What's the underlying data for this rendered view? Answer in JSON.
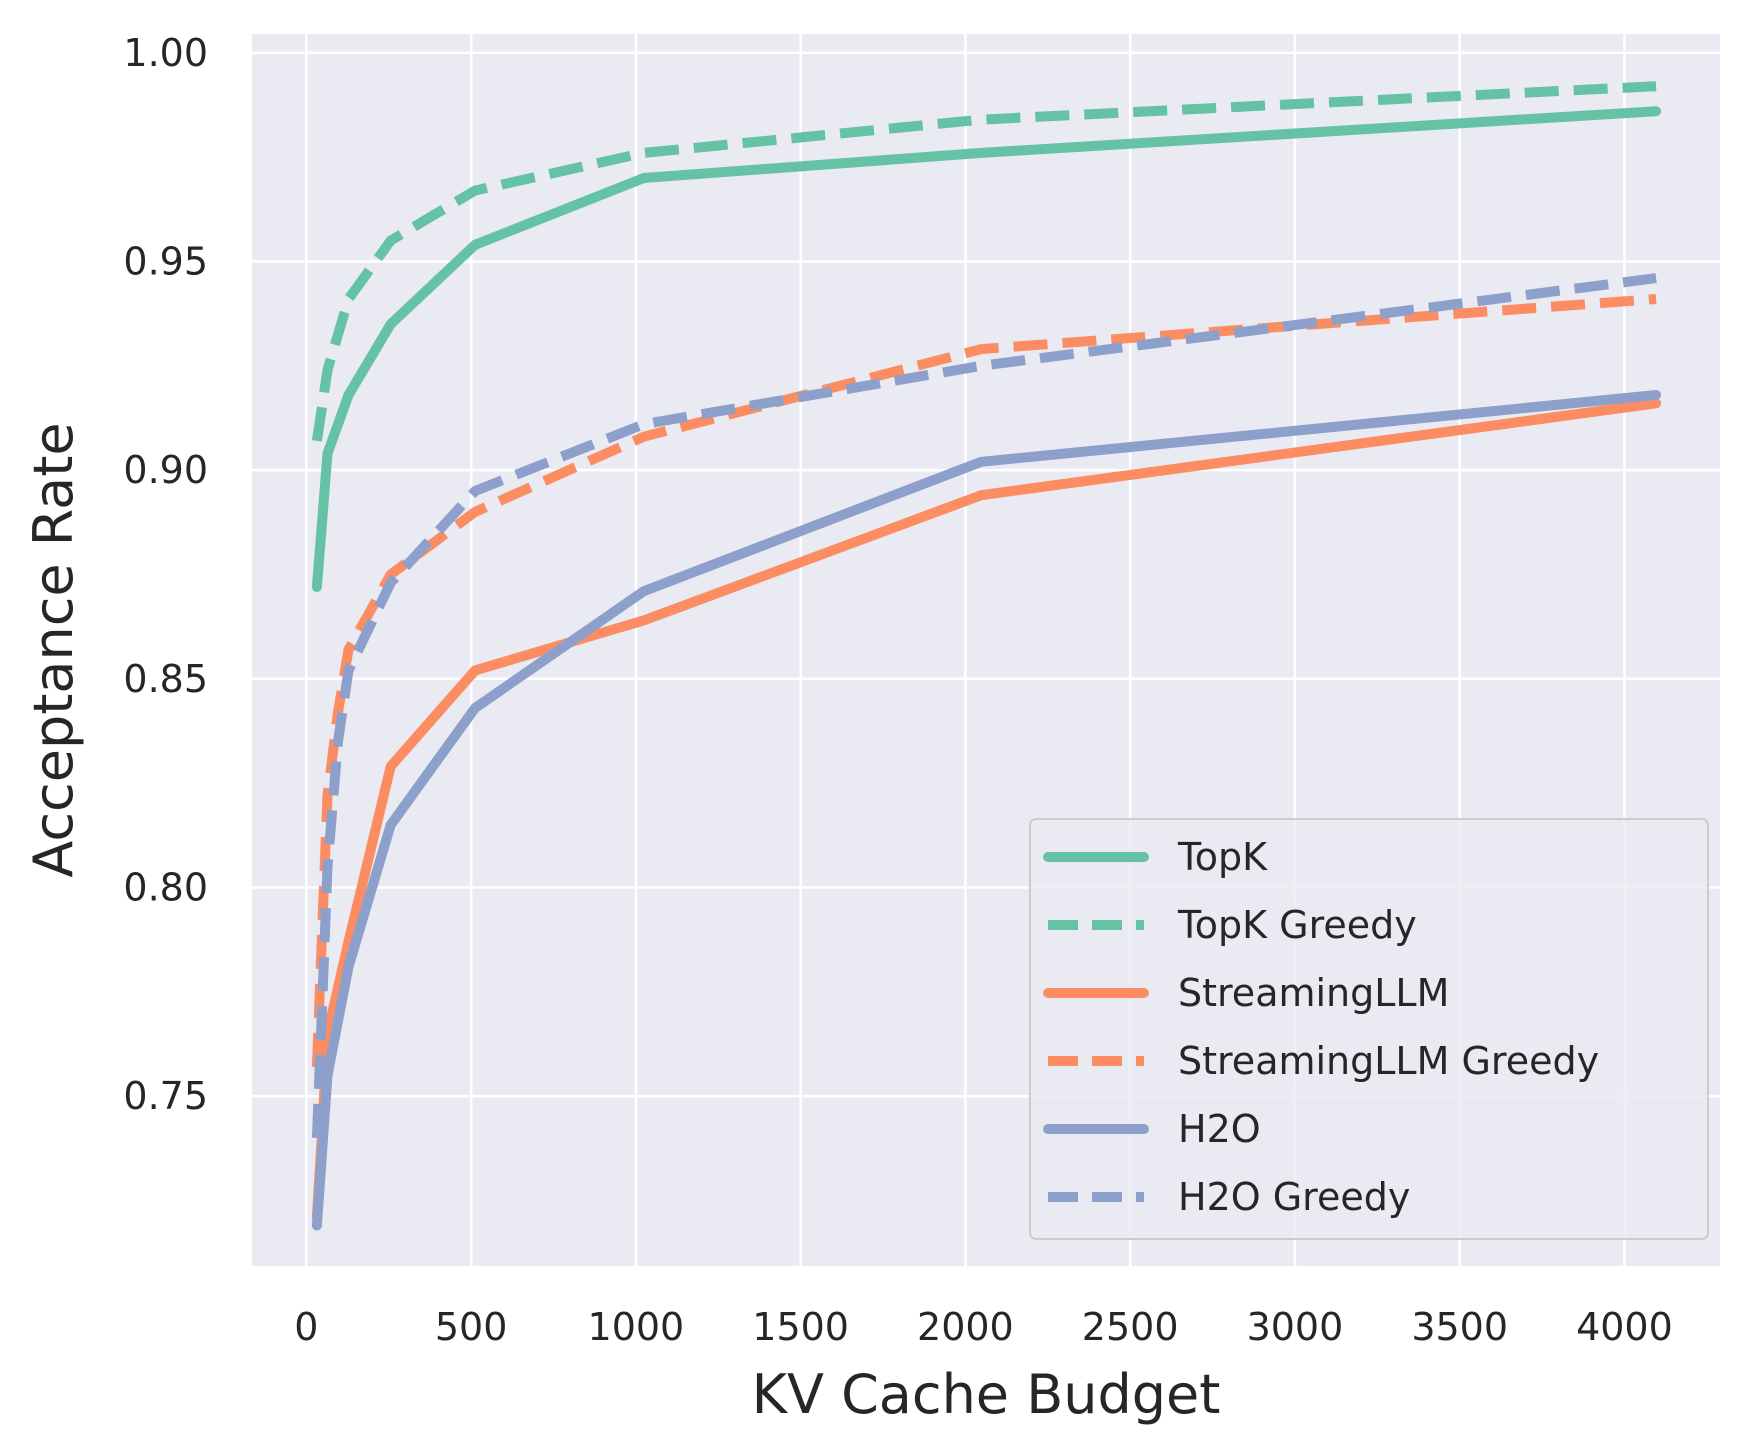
{
  "chart_data": {
    "type": "line",
    "title": "",
    "xlabel": "KV Cache Budget",
    "ylabel": "Acceptance Rate",
    "xlim": [
      -165,
      4290
    ],
    "ylim": [
      0.7093,
      1.0045
    ],
    "xticks": [
      0,
      500,
      1000,
      1500,
      2000,
      2500,
      3000,
      3500,
      4000
    ],
    "xtick_labels": [
      "0",
      "500",
      "1000",
      "1500",
      "2000",
      "2500",
      "3000",
      "3500",
      "4000"
    ],
    "yticks": [
      0.75,
      0.8,
      0.85,
      0.9,
      0.95,
      1.0
    ],
    "ytick_labels": [
      "0.75",
      "0.80",
      "0.85",
      "0.90",
      "0.95",
      "1.00"
    ],
    "grid": true,
    "legend_position": "lower-right",
    "series": [
      {
        "name": "TopK",
        "color": "#66c2a5",
        "dash": "solid",
        "x": [
          32,
          64,
          128,
          256,
          512,
          1024,
          2048,
          4096
        ],
        "y": [
          0.872,
          0.904,
          0.918,
          0.935,
          0.954,
          0.97,
          0.976,
          0.986
        ]
      },
      {
        "name": "TopK Greedy",
        "color": "#66c2a5",
        "dash": "dashed",
        "x": [
          32,
          64,
          128,
          256,
          512,
          1024,
          2048,
          4096
        ],
        "y": [
          0.907,
          0.924,
          0.941,
          0.955,
          0.967,
          0.976,
          0.984,
          0.992
        ]
      },
      {
        "name": "StreamingLLM",
        "color": "#fc8d62",
        "dash": "solid",
        "x": [
          32,
          48,
          64,
          128,
          256,
          512,
          1024,
          2048,
          4096
        ],
        "y": [
          0.721,
          0.742,
          0.765,
          0.787,
          0.829,
          0.852,
          0.864,
          0.894,
          0.916
        ]
      },
      {
        "name": "StreamingLLM Greedy",
        "color": "#fc8d62",
        "dash": "dashed",
        "x": [
          32,
          48,
          64,
          96,
          128,
          256,
          512,
          1024,
          2048,
          4096
        ],
        "y": [
          0.757,
          0.79,
          0.822,
          0.842,
          0.857,
          0.875,
          0.89,
          0.908,
          0.929,
          0.941
        ]
      },
      {
        "name": "H2O",
        "color": "#8da0cb",
        "dash": "solid",
        "x": [
          32,
          48,
          64,
          128,
          256,
          512,
          1024,
          2048,
          4096
        ],
        "y": [
          0.719,
          0.737,
          0.755,
          0.781,
          0.815,
          0.843,
          0.871,
          0.902,
          0.918
        ]
      },
      {
        "name": "H2O Greedy",
        "color": "#8da0cb",
        "dash": "dashed",
        "x": [
          32,
          48,
          64,
          96,
          128,
          256,
          512,
          1024,
          2048,
          4096
        ],
        "y": [
          0.74,
          0.772,
          0.805,
          0.835,
          0.852,
          0.873,
          0.895,
          0.911,
          0.925,
          0.946
        ]
      }
    ]
  }
}
